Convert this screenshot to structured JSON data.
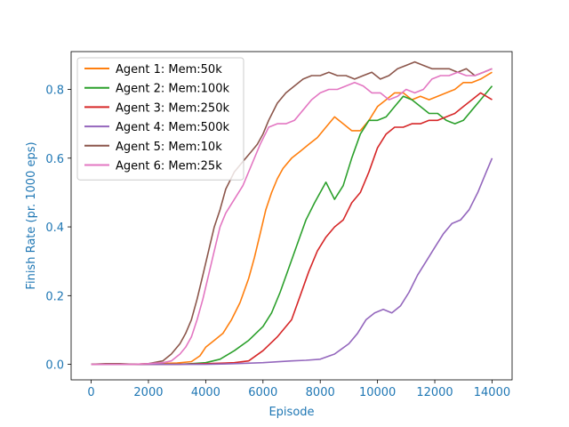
{
  "chart_data": {
    "type": "line",
    "title": "",
    "xlabel": "Episode",
    "ylabel": "Finish Rate (pr. 1000 eps)",
    "xlim": [
      -700,
      14700
    ],
    "ylim": [
      -0.045,
      0.91
    ],
    "xticks": [
      0,
      2000,
      4000,
      6000,
      8000,
      10000,
      12000,
      14000
    ],
    "xtick_labels": [
      "0",
      "2000",
      "4000",
      "6000",
      "8000",
      "10000",
      "12000",
      "14000"
    ],
    "yticks": [
      0.0,
      0.2,
      0.4,
      0.6,
      0.8
    ],
    "ytick_labels": [
      "0.0",
      "0.2",
      "0.4",
      "0.6",
      "0.8"
    ],
    "grid": false,
    "legend_position": "upper-left",
    "axis_label_color": "#1f77b4",
    "series": [
      {
        "name": "Agent 1: Mem:50k",
        "color": "#ff7f0e",
        "x": [
          0,
          500,
          1000,
          1500,
          2000,
          2500,
          3000,
          3500,
          3800,
          4000,
          4300,
          4600,
          4900,
          5200,
          5500,
          5700,
          5900,
          6100,
          6300,
          6500,
          6700,
          7000,
          7300,
          7600,
          7900,
          8200,
          8500,
          8800,
          9100,
          9400,
          9700,
          10000,
          10300,
          10600,
          10900,
          11200,
          11500,
          11800,
          12100,
          12400,
          12700,
          13000,
          13300,
          13600,
          14000
        ],
        "y": [
          0.0,
          0.0,
          0.0,
          0.0,
          0.002,
          0.003,
          0.004,
          0.008,
          0.025,
          0.05,
          0.07,
          0.09,
          0.13,
          0.18,
          0.25,
          0.31,
          0.38,
          0.45,
          0.5,
          0.54,
          0.57,
          0.6,
          0.62,
          0.64,
          0.66,
          0.69,
          0.72,
          0.7,
          0.68,
          0.68,
          0.71,
          0.75,
          0.77,
          0.79,
          0.79,
          0.77,
          0.78,
          0.77,
          0.78,
          0.79,
          0.8,
          0.82,
          0.82,
          0.83,
          0.85
        ]
      },
      {
        "name": "Agent 2: Mem:100k",
        "color": "#2ca02c",
        "x": [
          0,
          1000,
          2000,
          3000,
          3500,
          4000,
          4500,
          5000,
          5500,
          6000,
          6300,
          6600,
          6900,
          7200,
          7500,
          7800,
          8000,
          8200,
          8500,
          8800,
          9100,
          9400,
          9700,
          10000,
          10300,
          10600,
          10900,
          11200,
          11500,
          11800,
          12100,
          12400,
          12700,
          13000,
          13300,
          13600,
          14000
        ],
        "y": [
          0.0,
          0.0,
          0.0,
          0.0,
          0.002,
          0.005,
          0.015,
          0.04,
          0.07,
          0.11,
          0.15,
          0.21,
          0.28,
          0.35,
          0.42,
          0.47,
          0.5,
          0.53,
          0.48,
          0.52,
          0.6,
          0.67,
          0.71,
          0.71,
          0.72,
          0.75,
          0.78,
          0.77,
          0.75,
          0.73,
          0.73,
          0.71,
          0.7,
          0.71,
          0.74,
          0.77,
          0.81
        ]
      },
      {
        "name": "Agent 3: Mem:250k",
        "color": "#d62728",
        "x": [
          0,
          1000,
          2000,
          3000,
          4000,
          5000,
          5500,
          6000,
          6500,
          7000,
          7300,
          7600,
          7900,
          8200,
          8500,
          8800,
          9100,
          9400,
          9700,
          10000,
          10300,
          10600,
          10900,
          11200,
          11500,
          11800,
          12100,
          12400,
          12700,
          13000,
          13300,
          13600,
          14000
        ],
        "y": [
          0.0,
          0.0,
          0.0,
          0.0,
          0.002,
          0.005,
          0.01,
          0.04,
          0.08,
          0.13,
          0.2,
          0.27,
          0.33,
          0.37,
          0.4,
          0.42,
          0.47,
          0.5,
          0.56,
          0.63,
          0.67,
          0.69,
          0.69,
          0.7,
          0.7,
          0.71,
          0.71,
          0.72,
          0.73,
          0.75,
          0.77,
          0.79,
          0.77
        ]
      },
      {
        "name": "Agent 4: Mem:500k",
        "color": "#9467bd",
        "x": [
          0,
          2000,
          4000,
          5000,
          6000,
          7000,
          7500,
          8000,
          8500,
          9000,
          9300,
          9600,
          9900,
          10200,
          10500,
          10800,
          11100,
          11400,
          11700,
          12000,
          12300,
          12600,
          12900,
          13200,
          13500,
          13800,
          14000
        ],
        "y": [
          0.0,
          0.0,
          0.0,
          0.002,
          0.005,
          0.01,
          0.012,
          0.015,
          0.03,
          0.06,
          0.09,
          0.13,
          0.15,
          0.16,
          0.15,
          0.17,
          0.21,
          0.26,
          0.3,
          0.34,
          0.38,
          0.41,
          0.42,
          0.45,
          0.5,
          0.56,
          0.6
        ]
      },
      {
        "name": "Agent 5: Mem:10k",
        "color": "#8c564b",
        "x": [
          0,
          500,
          1000,
          1500,
          2000,
          2500,
          2800,
          3100,
          3300,
          3500,
          3700,
          3900,
          4100,
          4300,
          4500,
          4700,
          5000,
          5300,
          5600,
          5800,
          6000,
          6200,
          6500,
          6800,
          7100,
          7400,
          7700,
          8000,
          8300,
          8600,
          8900,
          9200,
          9500,
          9800,
          10100,
          10400,
          10700,
          11000,
          11300,
          11600,
          11900,
          12200,
          12500,
          12800,
          13100,
          13400,
          13700,
          14000
        ],
        "y": [
          0.0,
          0.002,
          0.002,
          0.0,
          0.002,
          0.01,
          0.03,
          0.06,
          0.09,
          0.13,
          0.19,
          0.26,
          0.33,
          0.4,
          0.45,
          0.51,
          0.56,
          0.59,
          0.62,
          0.64,
          0.67,
          0.71,
          0.76,
          0.79,
          0.81,
          0.83,
          0.84,
          0.84,
          0.85,
          0.84,
          0.84,
          0.83,
          0.84,
          0.85,
          0.83,
          0.84,
          0.86,
          0.87,
          0.88,
          0.87,
          0.86,
          0.86,
          0.86,
          0.85,
          0.86,
          0.84,
          0.85,
          0.86
        ]
      },
      {
        "name": "Agent 6: Mem:25k",
        "color": "#e377c2",
        "x": [
          0,
          500,
          1000,
          1500,
          2000,
          2500,
          2800,
          3100,
          3300,
          3500,
          3700,
          3900,
          4100,
          4300,
          4500,
          4700,
          5000,
          5300,
          5600,
          5900,
          6200,
          6500,
          6800,
          7100,
          7400,
          7700,
          8000,
          8300,
          8600,
          8900,
          9200,
          9500,
          9800,
          10100,
          10400,
          10700,
          11000,
          11300,
          11600,
          11900,
          12200,
          12500,
          12800,
          13100,
          13400,
          13700,
          14000
        ],
        "y": [
          0.0,
          0.0,
          0.0,
          0.0,
          0.002,
          0.005,
          0.01,
          0.03,
          0.05,
          0.08,
          0.13,
          0.19,
          0.26,
          0.33,
          0.4,
          0.44,
          0.48,
          0.52,
          0.58,
          0.64,
          0.69,
          0.7,
          0.7,
          0.71,
          0.74,
          0.77,
          0.79,
          0.8,
          0.8,
          0.81,
          0.82,
          0.81,
          0.79,
          0.79,
          0.77,
          0.78,
          0.8,
          0.79,
          0.8,
          0.83,
          0.84,
          0.84,
          0.85,
          0.84,
          0.84,
          0.85,
          0.86
        ]
      }
    ]
  }
}
